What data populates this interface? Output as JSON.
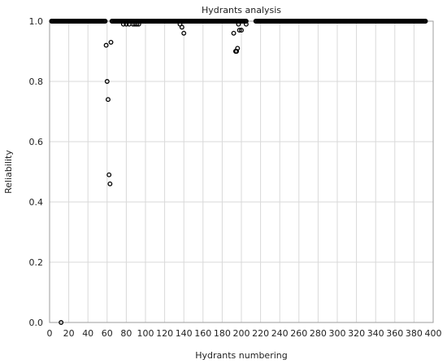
{
  "chart_data": {
    "type": "scatter",
    "title": "Hydrants analysis",
    "xlabel": "Hydrants numbering",
    "ylabel": "Reliability",
    "xlim": [
      0,
      400
    ],
    "ylim": [
      0,
      1
    ],
    "grid": true,
    "x_ticks": [
      "0",
      "20",
      "40",
      "60",
      "80",
      "100",
      "120",
      "140",
      "160",
      "180",
      "200",
      "220",
      "240",
      "260",
      "280",
      "300",
      "320",
      "340",
      "360",
      "380",
      "400"
    ],
    "y_ticks": [
      "0.0",
      "0.2",
      "0.4",
      "0.6",
      "0.8",
      "1.0"
    ],
    "baseline": {
      "y": 1.0,
      "x_ranges": [
        [
          2,
          58
        ],
        [
          65,
          205
        ],
        [
          215,
          392
        ]
      ]
    },
    "points": [
      {
        "x": 12,
        "y": 0.0
      },
      {
        "x": 59,
        "y": 0.92
      },
      {
        "x": 60,
        "y": 0.8
      },
      {
        "x": 61,
        "y": 0.74
      },
      {
        "x": 62,
        "y": 0.49
      },
      {
        "x": 63,
        "y": 0.46
      },
      {
        "x": 64,
        "y": 0.93
      },
      {
        "x": 77,
        "y": 0.99
      },
      {
        "x": 80,
        "y": 0.99
      },
      {
        "x": 83,
        "y": 0.99
      },
      {
        "x": 85,
        "y": 1.0
      },
      {
        "x": 87,
        "y": 0.99
      },
      {
        "x": 89,
        "y": 0.99
      },
      {
        "x": 91,
        "y": 0.99
      },
      {
        "x": 93,
        "y": 0.99
      },
      {
        "x": 96,
        "y": 1.0
      },
      {
        "x": 136,
        "y": 0.99
      },
      {
        "x": 138,
        "y": 0.98
      },
      {
        "x": 140,
        "y": 0.96
      },
      {
        "x": 192,
        "y": 0.96
      },
      {
        "x": 194,
        "y": 0.9
      },
      {
        "x": 195,
        "y": 0.9
      },
      {
        "x": 196,
        "y": 0.91
      },
      {
        "x": 197,
        "y": 0.99
      },
      {
        "x": 198,
        "y": 0.97
      },
      {
        "x": 200,
        "y": 0.97
      },
      {
        "x": 205,
        "y": 0.99
      }
    ]
  }
}
